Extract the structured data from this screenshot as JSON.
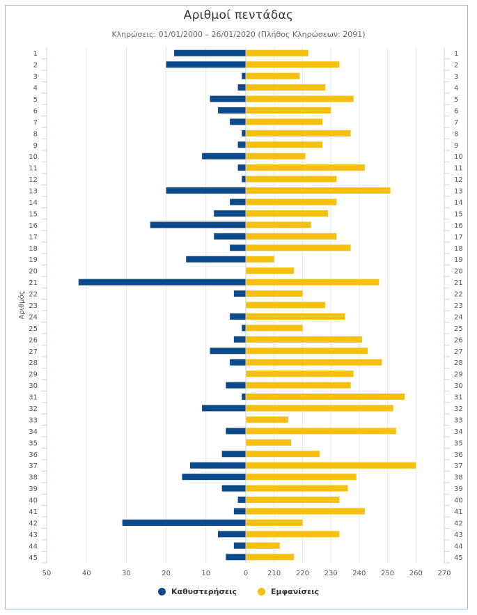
{
  "chart_data": {
    "type": "bar",
    "orientation": "horizontal-diverging",
    "title": "Αριθμοί πεντάδας",
    "subtitle": "Κληρώσεις: 01/01/2000 – 26/01/2020 (Πλήθος Κληρώσεων: 2091)",
    "ylabel": "Αριθμός",
    "categories": [
      "1",
      "2",
      "3",
      "4",
      "5",
      "6",
      "7",
      "8",
      "9",
      "10",
      "11",
      "12",
      "13",
      "14",
      "15",
      "16",
      "17",
      "18",
      "19",
      "20",
      "21",
      "22",
      "23",
      "24",
      "25",
      "26",
      "27",
      "28",
      "29",
      "30",
      "31",
      "32",
      "33",
      "34",
      "35",
      "36",
      "37",
      "38",
      "39",
      "40",
      "41",
      "42",
      "43",
      "44",
      "45"
    ],
    "left_axis": {
      "ticks": [
        "50",
        "40",
        "30",
        "20",
        "10",
        "0"
      ],
      "range": [
        0,
        50
      ]
    },
    "right_axis": {
      "ticks": [
        "210",
        "220",
        "230",
        "240",
        "250",
        "260",
        "270"
      ],
      "range": [
        200,
        270
      ]
    },
    "series": [
      {
        "name": "Καθυστερήσεις",
        "color": "#0d4a8c",
        "side": "left",
        "values": [
          18,
          20,
          1,
          2,
          9,
          7,
          4,
          1,
          2,
          11,
          2,
          1,
          20,
          4,
          8,
          24,
          8,
          4,
          15,
          0,
          42,
          3,
          0,
          4,
          1,
          3,
          9,
          4,
          0,
          5,
          1,
          11,
          0,
          5,
          0,
          6,
          14,
          16,
          6,
          2,
          3,
          31,
          7,
          3,
          5
        ]
      },
      {
        "name": "Εμφανίσεις",
        "color": "#f5c010",
        "side": "right",
        "values": [
          222,
          233,
          219,
          228,
          238,
          230,
          227,
          237,
          227,
          221,
          242,
          232,
          251,
          232,
          229,
          223,
          232,
          237,
          210,
          217,
          247,
          220,
          228,
          235,
          220,
          241,
          243,
          248,
          238,
          237,
          256,
          252,
          215,
          253,
          216,
          226,
          260,
          239,
          236,
          233,
          242,
          220,
          233,
          212,
          217
        ]
      }
    ]
  }
}
